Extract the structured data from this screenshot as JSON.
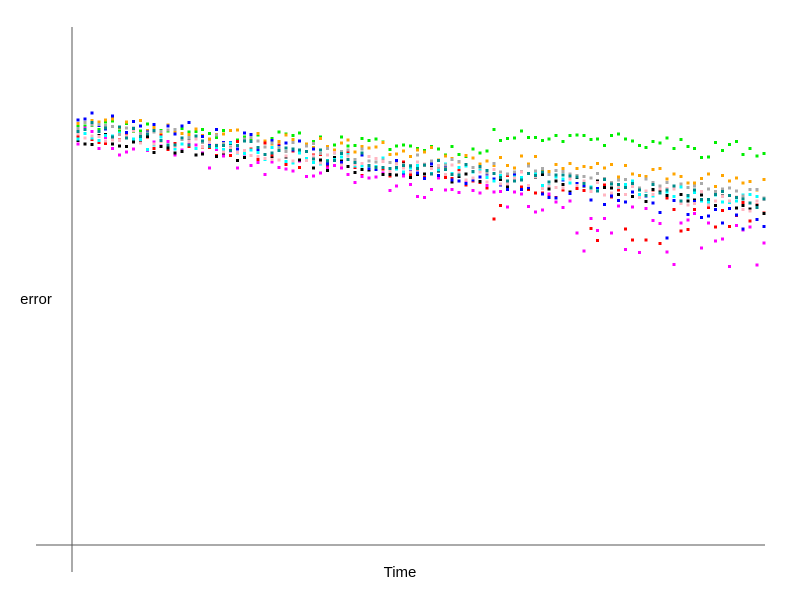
{
  "chart_data": {
    "type": "scatter",
    "xlabel": "Time",
    "ylabel": "error",
    "xlim": [
      0,
      100
    ],
    "ylim": [
      0,
      1
    ],
    "grid": false,
    "legend": "none",
    "series": [
      {
        "color": "#00ee00",
        "trend": [
          0.815,
          0.72
        ],
        "noise": 0.012,
        "lift": [
          60,
          100,
          0.05
        ],
        "seed": 11
      },
      {
        "color": "#ffa500",
        "trend": [
          0.82,
          0.695
        ],
        "noise": 0.013,
        "seed": 23
      },
      {
        "color": "#ff0000",
        "trend": [
          0.8,
          0.64
        ],
        "noise": 0.02,
        "dip": [
          58,
          100,
          0.08
        ],
        "seed": 37
      },
      {
        "color": "#ff00ff",
        "trend": [
          0.785,
          0.6
        ],
        "noise": 0.022,
        "dip": [
          70,
          100,
          0.08
        ],
        "seed": 41
      },
      {
        "color": "#000000",
        "trend": [
          0.79,
          0.655
        ],
        "noise": 0.018,
        "seed": 53
      },
      {
        "color": "#0000ff",
        "trend": [
          0.83,
          0.625
        ],
        "noise": 0.02,
        "dip": [
          85,
          100,
          0.07
        ],
        "seed": 67
      },
      {
        "color": "#00ffff",
        "trend": [
          0.79,
          0.665
        ],
        "noise": 0.014,
        "seed": 71
      },
      {
        "color": "#aaaaaa",
        "trend": [
          0.81,
          0.675
        ],
        "noise": 0.012,
        "seed": 83
      },
      {
        "color": "#ffb6c1",
        "trend": [
          0.8,
          0.655
        ],
        "noise": 0.015,
        "seed": 97
      },
      {
        "color": "#008b8b",
        "trend": [
          0.805,
          0.66
        ],
        "noise": 0.014,
        "seed": 101
      }
    ]
  }
}
